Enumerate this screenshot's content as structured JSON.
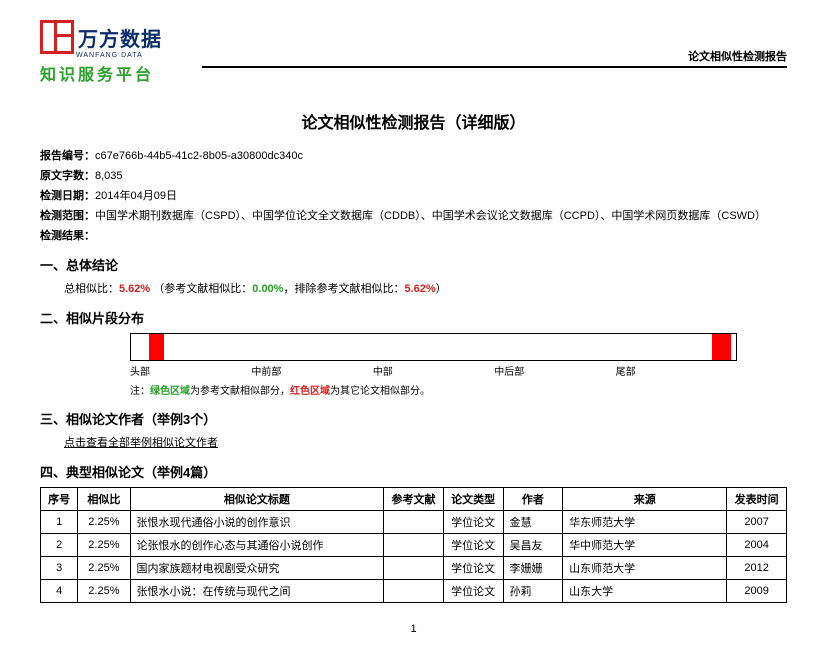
{
  "header": {
    "brand_main": "万方数据",
    "brand_sub": "WANFANG DATA",
    "brand_platform": "知识服务平台",
    "right_label": "论文相似性检测报告"
  },
  "title": "论文相似性检测报告（详细版）",
  "meta": {
    "report_id_label": "报告编号：",
    "report_id": "c67e766b-44b5-41c2-8b05-a30800dc340c",
    "word_count_label": "原文字数：",
    "word_count": "8,035",
    "date_label": "检测日期：",
    "date": "2014年04月09日",
    "scope_label": "检测范围：",
    "scope": "中国学术期刊数据库（CSPD）、中国学位论文全文数据库（CDDB）、中国学术会议论文数据库（CCPD）、中国学术网页数据库（CSWD）",
    "result_label": "检测结果："
  },
  "section1": {
    "heading": "一、总体结论",
    "line_prefix": "总相似比：",
    "total_ratio": "5.62%",
    "ref_prefix": "（参考文献相似比：",
    "ref_ratio": "0.00%",
    "excl_prefix": "，排除参考文献相似比：",
    "excl_ratio": "5.62%",
    "suffix": "）"
  },
  "section2": {
    "heading": "二、相似片段分布",
    "labels": [
      "头部",
      "中前部",
      "中部",
      "中后部",
      "尾部"
    ],
    "segments": [
      {
        "left_pct": 3,
        "width_pct": 2.5
      },
      {
        "left_pct": 96,
        "width_pct": 3.2
      }
    ],
    "note_prefix": "注：",
    "note_green": "绿色区域",
    "note_mid": "为参考文献相似部分，",
    "note_red": "红色区域",
    "note_end": "为其它论文相似部分。"
  },
  "section3": {
    "heading": "三、相似论文作者（举例3个）",
    "link": "点击查看全部举例相似论文作者"
  },
  "section4": {
    "heading": "四、典型相似论文（举例4篇）",
    "cols": [
      "序号",
      "相似比",
      "相似论文标题",
      "参考文献",
      "论文类型",
      "作者",
      "来源",
      "发表时间"
    ],
    "rows": [
      [
        "1",
        "2.25%",
        "张恨水现代通俗小说的创作意识",
        "",
        "学位论文",
        "金慧",
        "华东师范大学",
        "2007"
      ],
      [
        "2",
        "2.25%",
        "论张恨水的创作心态与其通俗小说创作",
        "",
        "学位论文",
        "吴昌友",
        "华中师范大学",
        "2004"
      ],
      [
        "3",
        "2.25%",
        "国内家族题材电视剧受众研究",
        "",
        "学位论文",
        "李姗姗",
        "山东师范大学",
        "2012"
      ],
      [
        "4",
        "2.25%",
        "张恨水小说：在传统与现代之间",
        "",
        "学位论文",
        "孙莉",
        "山东大学",
        "2009"
      ]
    ],
    "col_widths": [
      "5%",
      "7%",
      "34%",
      "8%",
      "8%",
      "8%",
      "22%",
      "8%"
    ]
  },
  "page_number": "1",
  "colors": {
    "red": "#d32020",
    "green": "#2aa02a",
    "seg_red": "#ff0000"
  }
}
